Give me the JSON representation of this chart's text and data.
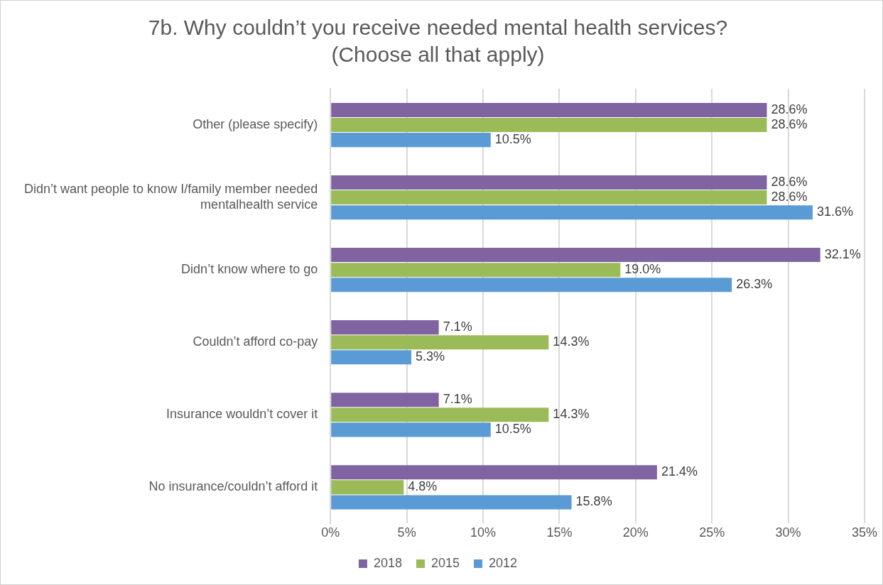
{
  "chart_data": {
    "type": "bar",
    "orientation": "horizontal",
    "title": "7b. Why couldn’t you receive needed mental health services?",
    "subtitle": "(Choose all that apply)",
    "categories": [
      "Other (please specify)",
      "Didn’t want people to know I/family member needed mentalhealth service",
      "Didn’t know where to go",
      "Couldn’t afford co-pay",
      "Insurance wouldn’t cover it",
      "No insurance/couldn’t afford it"
    ],
    "series": [
      {
        "name": "2018",
        "color": "#8064a2",
        "values": [
          28.6,
          28.6,
          32.1,
          7.1,
          7.1,
          21.4
        ],
        "value_labels": [
          "28.6%",
          "28.6%",
          "32.1%",
          "7.1%",
          "7.1%",
          "21.4%"
        ]
      },
      {
        "name": "2015",
        "color": "#9bbb59",
        "values": [
          28.6,
          28.6,
          19.0,
          14.3,
          14.3,
          4.8
        ],
        "value_labels": [
          "28.6%",
          "28.6%",
          "19.0%",
          "14.3%",
          "14.3%",
          "4.8%"
        ]
      },
      {
        "name": "2012",
        "color": "#5b9bd5",
        "values": [
          10.5,
          31.6,
          26.3,
          5.3,
          10.5,
          15.8
        ],
        "value_labels": [
          "10.5%",
          "31.6%",
          "26.3%",
          "5.3%",
          "10.5%",
          "15.8%"
        ]
      }
    ],
    "xlim": [
      0,
      35
    ],
    "xticks": [
      {
        "value": 0,
        "label": "0%"
      },
      {
        "value": 5,
        "label": "5%"
      },
      {
        "value": 10,
        "label": "10%"
      },
      {
        "value": 15,
        "label": "15%"
      },
      {
        "value": 20,
        "label": "20%"
      },
      {
        "value": 25,
        "label": "25%"
      },
      {
        "value": 30,
        "label": "30%"
      },
      {
        "value": 35,
        "label": "35%"
      }
    ],
    "grid": "x",
    "legend": "bottom"
  }
}
